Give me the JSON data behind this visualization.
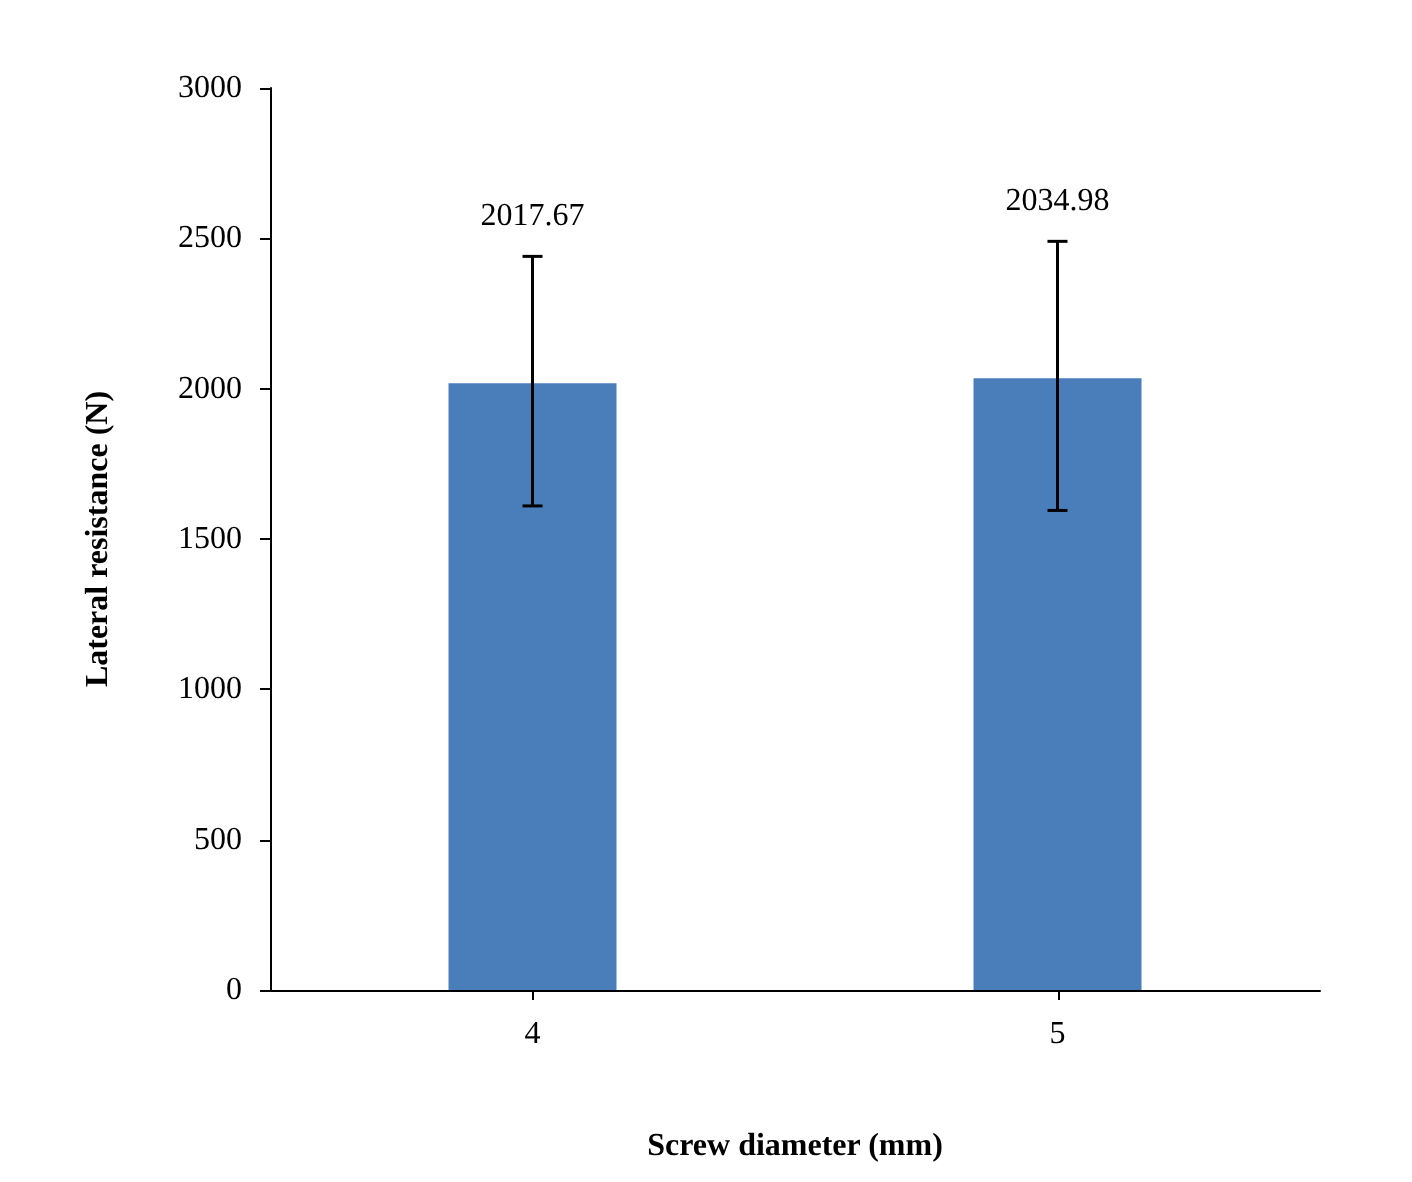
{
  "chart_data": {
    "type": "bar",
    "xlabel": "Screw diameter (mm)",
    "ylabel": "Lateral resistance (N)",
    "categories": [
      "4",
      "5"
    ],
    "values": [
      2017.67,
      2034.98
    ],
    "color": "#4a7ebb",
    "errors": [
      [
        1610,
        2440
      ],
      [
        1595,
        2490
      ]
    ],
    "annotations": [
      {
        "text": "2017.67",
        "x": "4",
        "y": 2440
      },
      {
        "text": "2034.98",
        "x": "5",
        "y": 2490
      }
    ],
    "ylim": [
      0,
      3000
    ],
    "yticks": [
      0,
      500,
      1000,
      1500,
      2000,
      2500,
      3000
    ],
    "grid": false
  }
}
